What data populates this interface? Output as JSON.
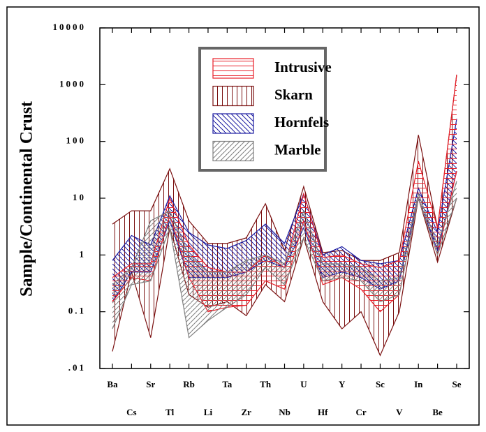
{
  "chart_data": {
    "type": "range-spider",
    "y_label": "Sample/Continental Crust",
    "log_scale": true,
    "categories": [
      "Ba",
      "Cs",
      "Sr",
      "Tl",
      "Rb",
      "Li",
      "Ta",
      "Zr",
      "Th",
      "Nb",
      "U",
      "Hf",
      "Y",
      "Cr",
      "Sc",
      "V",
      "In",
      "Be",
      "Se"
    ],
    "ylim": [
      0.01,
      10000
    ],
    "yticks": [
      {
        "value": 0.01,
        "label": ".01"
      },
      0.1,
      1,
      10,
      100,
      1000,
      10000
    ],
    "series": [
      {
        "name": "Intrusive",
        "color": "#e8202a",
        "hatch": "horizontal",
        "max": [
          0.4,
          0.7,
          0.7,
          10,
          1.5,
          0.6,
          0.5,
          0.5,
          1.0,
          0.6,
          12,
          0.9,
          1.0,
          0.7,
          0.6,
          0.8,
          45,
          3,
          1500
        ],
        "min": [
          0.15,
          0.4,
          0.35,
          5,
          0.4,
          0.1,
          0.12,
          0.13,
          0.35,
          0.25,
          4,
          0.3,
          0.4,
          0.25,
          0.1,
          0.2,
          10,
          1,
          30
        ]
      },
      {
        "name": "Skarn",
        "color": "#7a1010",
        "hatch": "vertical",
        "max": [
          3.5,
          6,
          6,
          33,
          4,
          1.6,
          1.6,
          2,
          8,
          1.2,
          16,
          1.1,
          1.2,
          0.8,
          0.8,
          1.1,
          130,
          3,
          1500
        ],
        "min": [
          0.02,
          0.5,
          0.035,
          3,
          0.2,
          0.12,
          0.15,
          0.085,
          0.3,
          0.15,
          2,
          0.15,
          0.05,
          0.1,
          0.017,
          0.1,
          10,
          0.75,
          10
        ]
      },
      {
        "name": "Hornfels",
        "color": "#1a1aa0",
        "hatch": "backslash",
        "max": [
          0.8,
          2.2,
          1.5,
          11,
          2.5,
          1.5,
          1.3,
          1.8,
          3.5,
          1.6,
          12,
          1.0,
          1.4,
          0.8,
          0.7,
          0.8,
          15,
          2.5,
          250
        ],
        "min": [
          0.15,
          0.5,
          0.5,
          4,
          0.4,
          0.4,
          0.4,
          0.5,
          0.8,
          0.6,
          3,
          0.4,
          0.5,
          0.4,
          0.25,
          0.35,
          10,
          1.2,
          30
        ]
      },
      {
        "name": "Marble",
        "color": "#808080",
        "hatch": "slash",
        "max": [
          0.3,
          0.6,
          4,
          6,
          1.0,
          0.5,
          0.5,
          0.8,
          1.0,
          0.7,
          6,
          0.7,
          0.7,
          0.6,
          0.35,
          0.4,
          12,
          1.5,
          20
        ],
        "min": [
          0.05,
          0.3,
          0.35,
          3,
          0.035,
          0.07,
          0.12,
          0.2,
          0.6,
          0.3,
          2,
          0.35,
          0.4,
          0.35,
          0.15,
          0.2,
          10,
          1,
          10
        ]
      }
    ]
  }
}
